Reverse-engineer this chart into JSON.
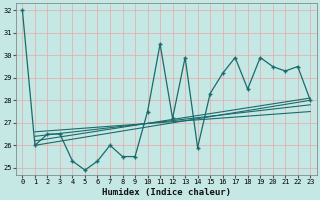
{
  "title": "",
  "xlabel": "Humidex (Indice chaleur)",
  "bg_color": "#c5e8e5",
  "grid_color": "#e8a8a8",
  "line_color": "#1a6b6b",
  "xlim": [
    -0.5,
    23.5
  ],
  "ylim": [
    24.7,
    32.3
  ],
  "xticks": [
    0,
    1,
    2,
    3,
    4,
    5,
    6,
    7,
    8,
    9,
    10,
    11,
    12,
    13,
    14,
    15,
    16,
    17,
    18,
    19,
    20,
    21,
    22,
    23
  ],
  "yticks": [
    25,
    26,
    27,
    28,
    29,
    30,
    31,
    32
  ],
  "main_series_x": [
    0,
    1,
    2,
    3,
    4,
    5,
    6,
    7,
    8,
    9,
    10,
    11,
    12,
    13,
    14,
    15,
    16,
    17,
    18,
    19,
    20,
    21,
    22,
    23
  ],
  "main_series_y": [
    32.0,
    26.0,
    26.5,
    26.5,
    25.3,
    24.9,
    25.3,
    26.0,
    25.5,
    25.5,
    27.5,
    30.5,
    27.2,
    29.9,
    25.9,
    28.3,
    29.2,
    29.9,
    28.5,
    29.9,
    29.5,
    29.3,
    29.5,
    28.0
  ],
  "regression_lines": [
    {
      "x0": 1,
      "x1": 23,
      "y0": 26.0,
      "y1": 28.0
    },
    {
      "x0": 1,
      "x1": 23,
      "y0": 26.2,
      "y1": 28.1
    },
    {
      "x0": 1,
      "x1": 23,
      "y0": 26.4,
      "y1": 27.8
    },
    {
      "x0": 1,
      "x1": 23,
      "y0": 26.6,
      "y1": 27.5
    }
  ]
}
